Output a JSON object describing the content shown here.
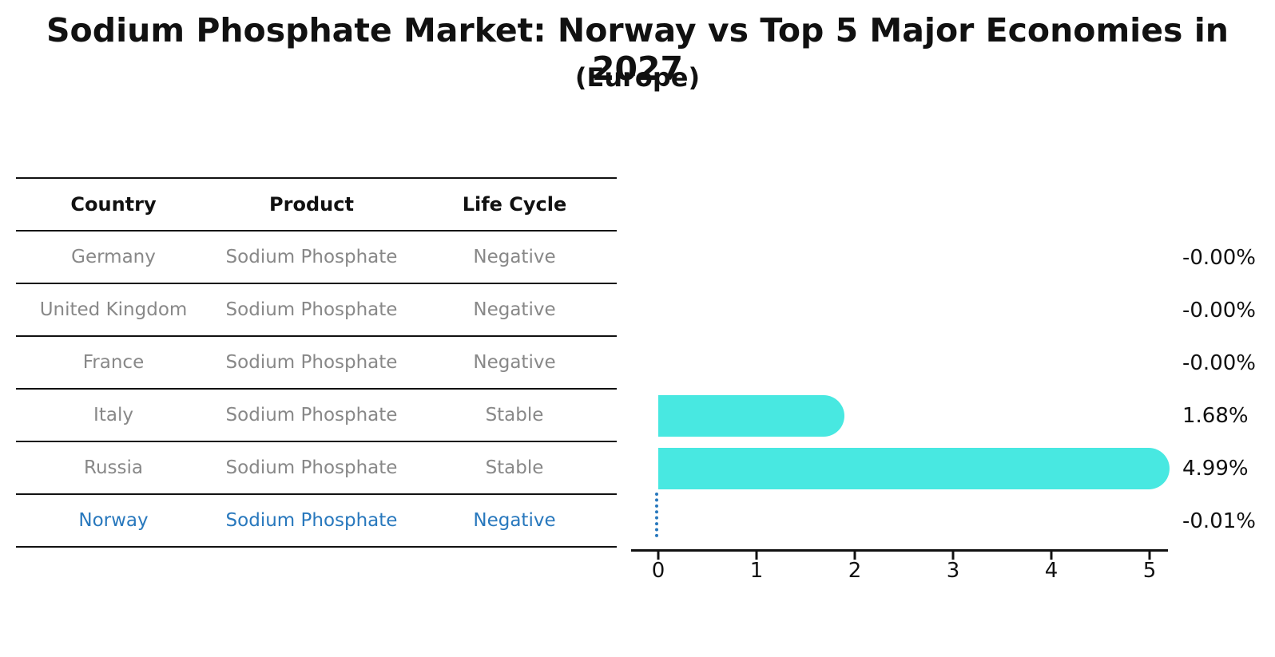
{
  "header": {
    "title": "Sodium Phosphate Market: Norway vs Top 5 Major Economies in 2027",
    "subtitle": "(Europe)"
  },
  "table": {
    "headers": [
      "Country",
      "Product",
      "Life Cycle"
    ],
    "rows": [
      {
        "country": "Germany",
        "product": "Sodium Phosphate",
        "life_cycle": "Negative",
        "highlight": false
      },
      {
        "country": "United Kingdom",
        "product": "Sodium Phosphate",
        "life_cycle": "Negative",
        "highlight": false
      },
      {
        "country": "France",
        "product": "Sodium Phosphate",
        "life_cycle": "Negative",
        "highlight": false
      },
      {
        "country": "Italy",
        "product": "Sodium Phosphate",
        "life_cycle": "Stable",
        "highlight": false
      },
      {
        "country": "Russia",
        "product": "Sodium Phosphate",
        "life_cycle": "Stable",
        "highlight": false
      },
      {
        "country": "Norway",
        "product": "Sodium Phosphate",
        "life_cycle": "Negative",
        "highlight": true
      }
    ]
  },
  "chart_data": {
    "type": "bar",
    "orientation": "horizontal",
    "title": "Sodium Phosphate Market: Norway vs Top 5 Major Economies in 2027 (Europe)",
    "categories": [
      "Germany",
      "United Kingdom",
      "France",
      "Italy",
      "Russia",
      "Norway"
    ],
    "values": [
      -0.0,
      -0.0,
      -0.0,
      1.68,
      4.99,
      -0.01
    ],
    "value_labels": [
      "-0.00%",
      "-0.00%",
      "-0.00%",
      "1.68%",
      "4.99%",
      "-0.01%"
    ],
    "xlabel": "",
    "ylabel": "",
    "xlim": [
      0,
      5.2
    ],
    "xticks": [
      0,
      1,
      2,
      3,
      4,
      5
    ],
    "grid": false,
    "legend": false,
    "bar_color": "#48E8E1",
    "highlight_marker_color": "#2878BD",
    "label_color": "#111111"
  },
  "colors": {
    "background": "#ffffff",
    "text_primary": "#111111",
    "text_muted": "#888888",
    "highlight_blue": "#2878BD",
    "bar_turquoise": "#48E8E1"
  }
}
